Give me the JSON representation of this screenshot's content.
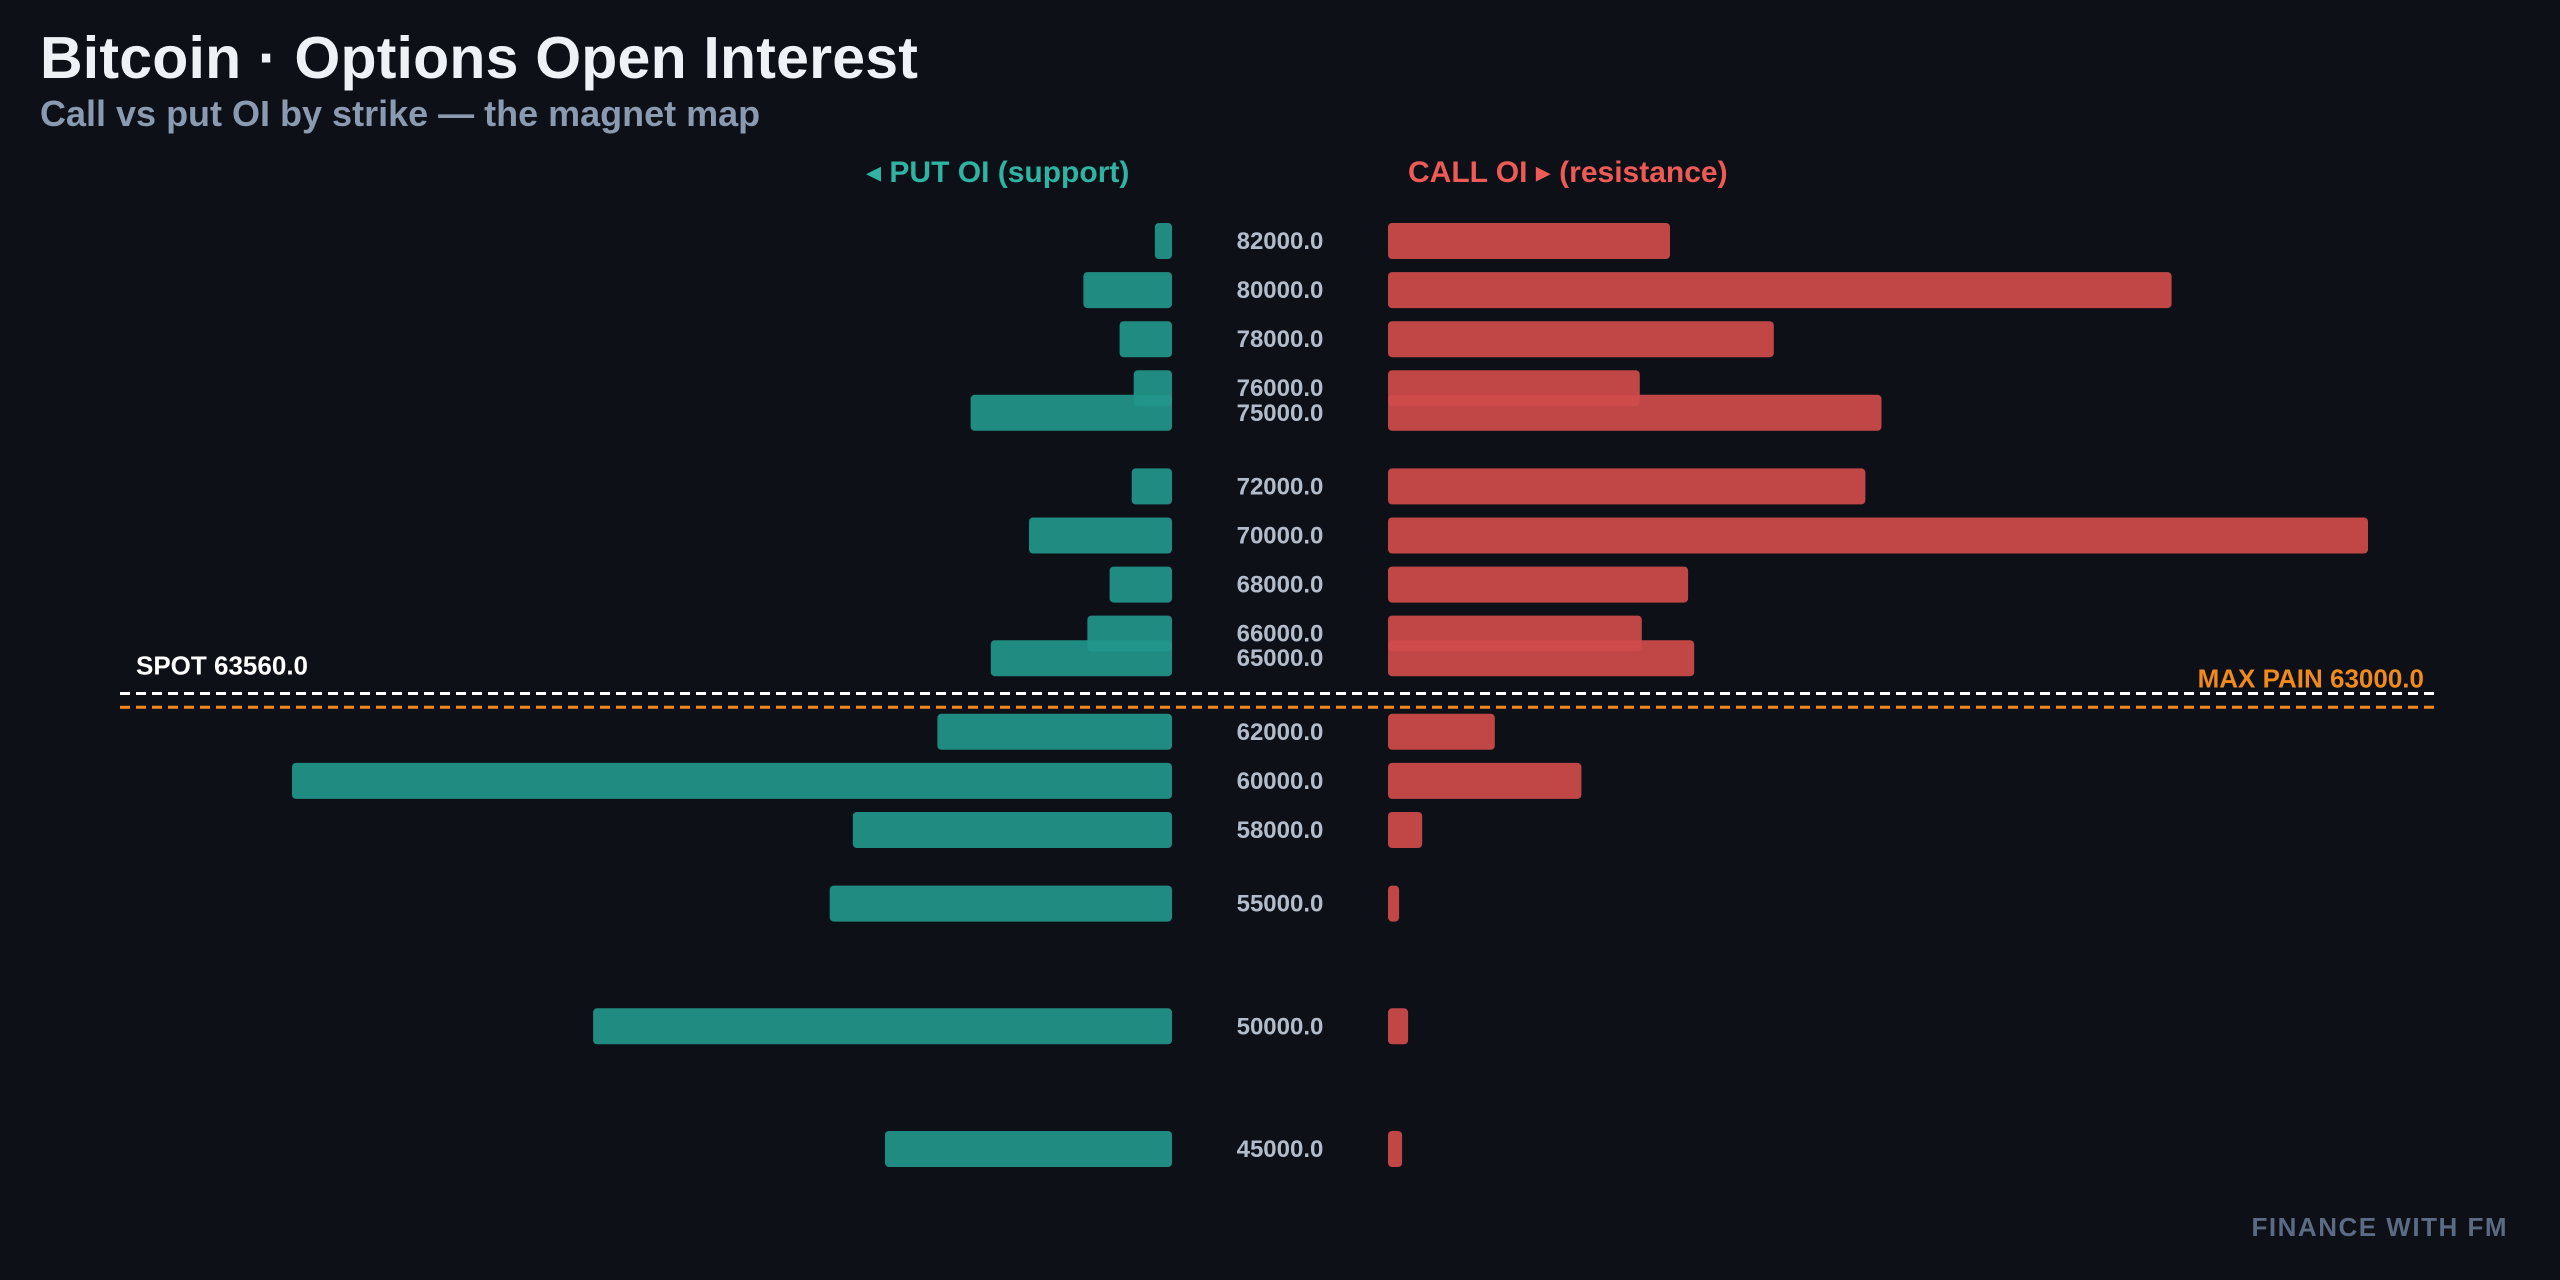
{
  "header": {
    "title": "Bitcoin · Options Open Interest",
    "subtitle": "Call vs put OI by strike — the magnet map"
  },
  "labels": {
    "put_side": "◂ PUT OI (support)",
    "call_side": "CALL OI ▸ (resistance)"
  },
  "watermark": "FINANCE WITH FM",
  "colors": {
    "background": "#0d1017",
    "put": "#22968b",
    "call": "#d04b4b",
    "spot_line": "#ffffff",
    "max_pain_line": "#f08a1c",
    "strike_text": "#b3bccb"
  },
  "chart_data": {
    "type": "bar",
    "orientation": "horizontal-butterfly",
    "y_axis": "strike",
    "y_range": [
      44000,
      83000
    ],
    "strike_label_format": "0.0",
    "spot": {
      "label": "SPOT 63560.0",
      "value": 63560.0
    },
    "max_pain": {
      "label": "MAX PAIN 63000.0",
      "value": 63000.0
    },
    "strikes": [
      82000,
      80000,
      78000,
      76000,
      75000,
      72000,
      70000,
      68000,
      66000,
      65000,
      62000,
      60000,
      58000,
      55000,
      50000,
      45000
    ],
    "strike_labels": [
      "82000.0",
      "80000.0",
      "78000.0",
      "76000.0",
      "75000.0",
      "72000.0",
      "70000.0",
      "68000.0",
      "66000.0",
      "65000.0",
      "62000.0",
      "60000.0",
      "58000.0",
      "55000.0",
      "50000.0",
      "45000.0"
    ],
    "series": [
      {
        "side": "put",
        "values": [
          170,
          880,
          520,
          380,
          2000,
          400,
          1420,
          620,
          840,
          1800,
          2330,
          8740,
          3170,
          3400,
          5750,
          2850
        ]
      },
      {
        "side": "call",
        "values": [
          2800,
          7780,
          3830,
          2500,
          4900,
          4740,
          9730,
          2980,
          2520,
          3040,
          1060,
          1920,
          340,
          110,
          200,
          140
        ]
      }
    ],
    "put_scale_max": 8740,
    "call_scale_max": 9730
  }
}
